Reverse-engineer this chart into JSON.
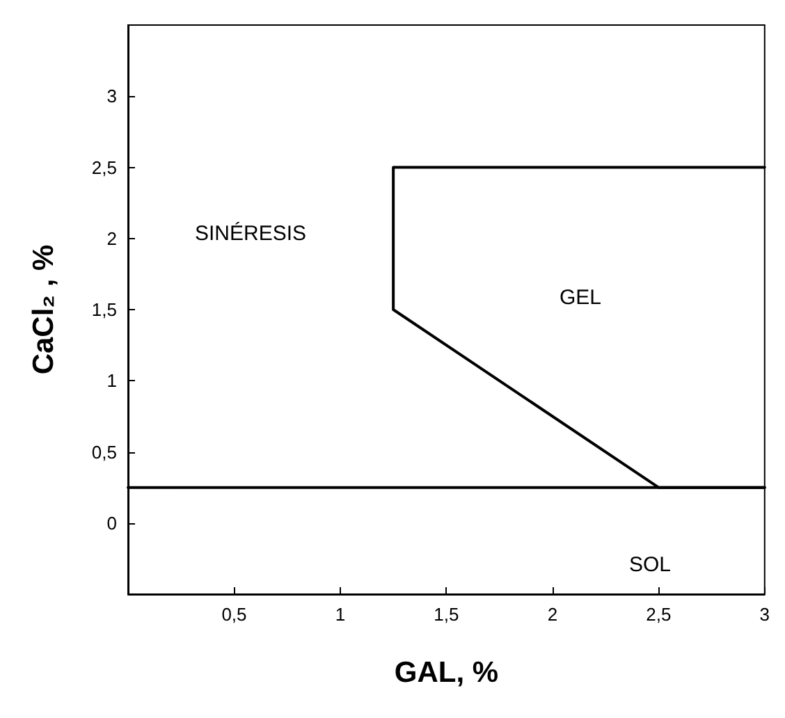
{
  "chart_data": {
    "type": "line",
    "xlabel": "GAL, %",
    "ylabel": "CaCl₂ , %",
    "xlim": [
      0,
      3.0
    ],
    "ylim": [
      -0.5,
      3.5
    ],
    "xticks": [
      {
        "value": 0.5,
        "label": "0,5"
      },
      1,
      {
        "value": 1.5,
        "label": "1,5"
      },
      2,
      {
        "value": 2.5,
        "label": "2,5"
      },
      3
    ],
    "yticks": [
      0,
      {
        "value": 0.5,
        "label": "0,5"
      },
      1,
      {
        "value": 1.5,
        "label": "1,5"
      },
      2,
      {
        "value": 2.5,
        "label": "2,5"
      },
      3
    ],
    "series": [
      {
        "color": "#000000",
        "x": [
          0,
          3
        ],
        "values": [
          0.25,
          0.25
        ]
      },
      {
        "color": "#000000",
        "x": [
          3,
          1.25,
          1.25,
          2.5,
          3
        ],
        "values": [
          2.5,
          2.5,
          1.5,
          0.25,
          0.25
        ]
      }
    ],
    "marker": "none",
    "line_style": "solid",
    "grid": false,
    "annotations": [
      "SINÉRESIS",
      "GEL",
      "SOL"
    ]
  }
}
